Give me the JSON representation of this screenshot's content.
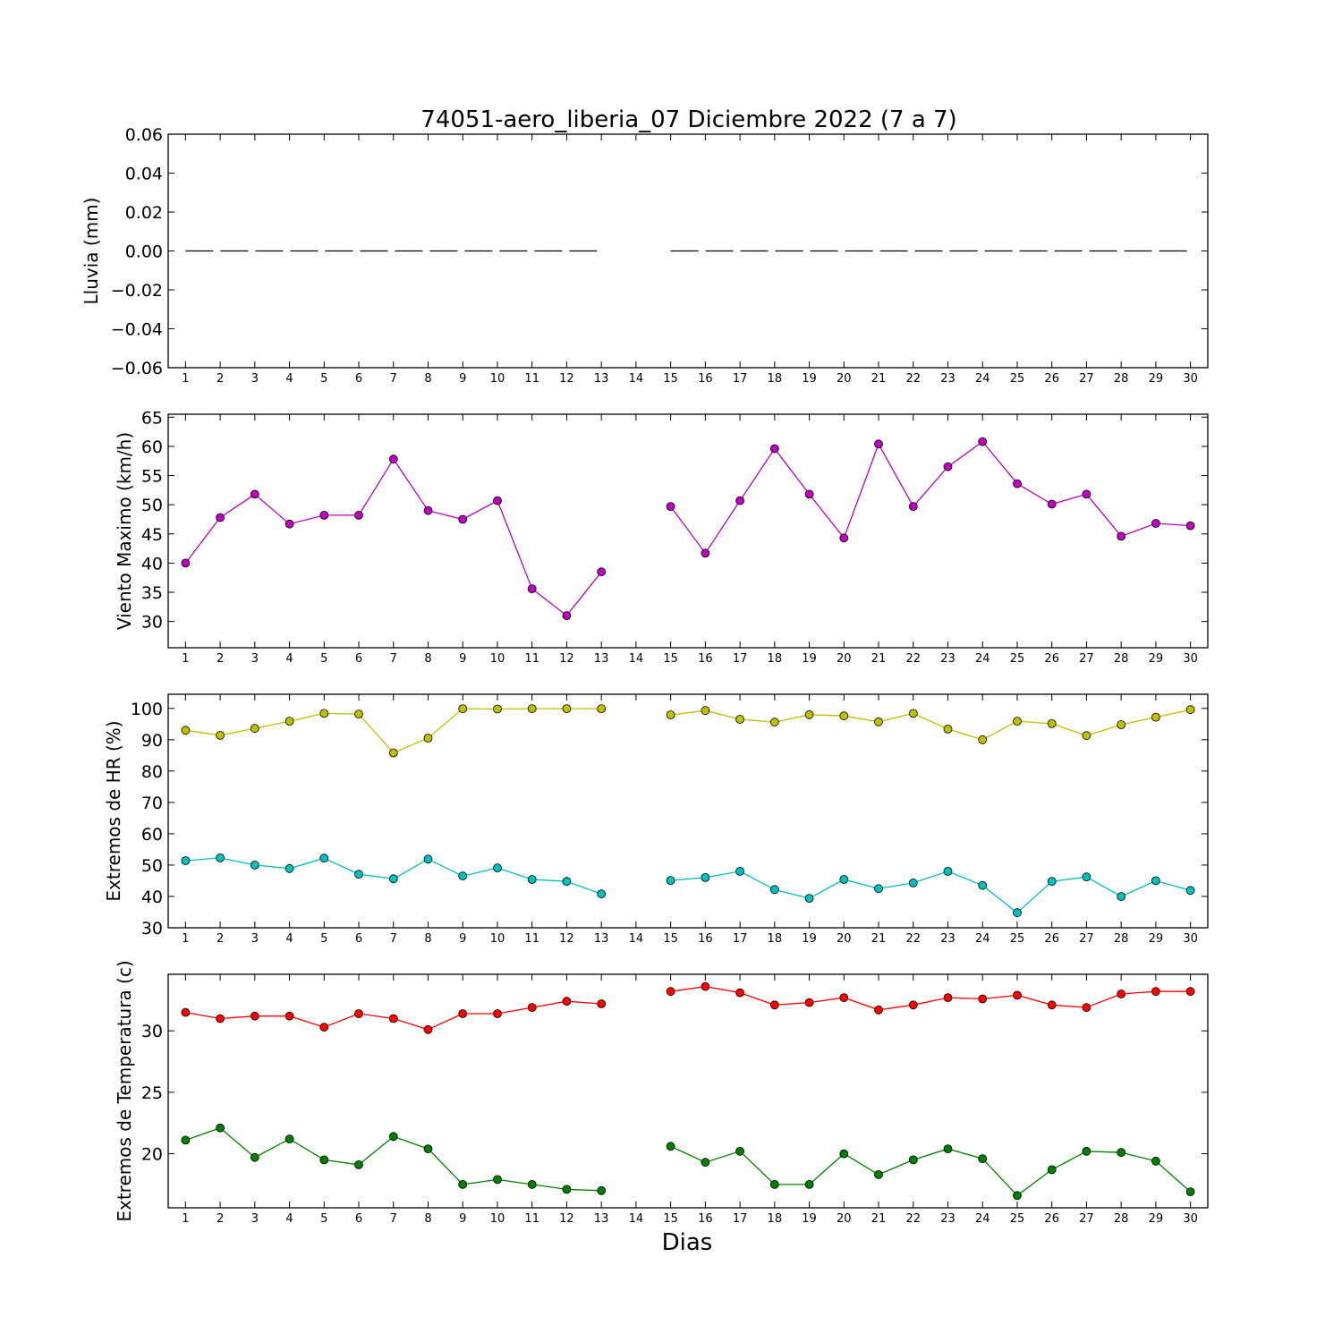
{
  "figure": {
    "title": "74051-aero_liberia_07 Diciembre 2022  (7 a 7)",
    "xlabel": "Dias"
  },
  "chart_data": [
    {
      "type": "line",
      "ylabel": "Lluvia (mm)",
      "x": [
        1,
        2,
        3,
        4,
        5,
        6,
        7,
        8,
        9,
        10,
        11,
        12,
        13,
        14,
        15,
        16,
        17,
        18,
        19,
        20,
        21,
        22,
        23,
        24,
        25,
        26,
        27,
        28,
        29,
        30
      ],
      "xlim": [
        0.5,
        30.5
      ],
      "ylim": [
        -0.06,
        0.06
      ],
      "yticks": [
        -0.06,
        -0.04,
        -0.02,
        0.0,
        0.02,
        0.04,
        0.06
      ],
      "yticklabels": [
        "−0.06",
        "−0.04",
        "−0.02",
        "0.00",
        "0.02",
        "0.04",
        "0.06"
      ],
      "series": [
        {
          "color": "#000000",
          "style": "dashed",
          "marker": "none",
          "values": [
            0,
            0,
            0,
            0,
            0,
            0,
            0,
            0,
            0,
            0,
            0,
            0,
            0,
            null,
            0,
            0,
            0,
            0,
            0,
            0,
            0,
            0,
            0,
            0,
            0,
            0,
            0,
            0,
            0,
            0
          ]
        }
      ]
    },
    {
      "type": "line",
      "ylabel": "Viento Maximo (km/h)",
      "x": [
        1,
        2,
        3,
        4,
        5,
        6,
        7,
        8,
        9,
        10,
        11,
        12,
        13,
        14,
        15,
        16,
        17,
        18,
        19,
        20,
        21,
        22,
        23,
        24,
        25,
        26,
        27,
        28,
        29,
        30
      ],
      "xlim": [
        0.5,
        30.5
      ],
      "ylim": [
        25.5,
        65.5
      ],
      "yticks": [
        30,
        35,
        40,
        45,
        50,
        55,
        60,
        65
      ],
      "yticklabels": [
        "30",
        "35",
        "40",
        "45",
        "50",
        "55",
        "60",
        "65"
      ],
      "series": [
        {
          "color": "#bf00bf",
          "style": "solid",
          "marker": "circle",
          "values": [
            40.0,
            47.8,
            51.8,
            46.7,
            48.2,
            48.2,
            57.8,
            49.0,
            47.5,
            50.7,
            35.6,
            31.0,
            38.5,
            null,
            49.7,
            41.7,
            50.7,
            59.6,
            51.8,
            44.3,
            60.4,
            49.7,
            56.5,
            60.8,
            53.6,
            50.1,
            51.8,
            44.6,
            46.8,
            46.4
          ]
        }
      ]
    },
    {
      "type": "line",
      "ylabel": "Extremos de HR (%)",
      "x": [
        1,
        2,
        3,
        4,
        5,
        6,
        7,
        8,
        9,
        10,
        11,
        12,
        13,
        14,
        15,
        16,
        17,
        18,
        19,
        20,
        21,
        22,
        23,
        24,
        25,
        26,
        27,
        28,
        29,
        30
      ],
      "xlim": [
        0.5,
        30.5
      ],
      "ylim": [
        30,
        104.5
      ],
      "yticks": [
        30,
        40,
        50,
        60,
        70,
        80,
        90,
        100
      ],
      "yticklabels": [
        "30",
        "40",
        "50",
        "60",
        "70",
        "80",
        "90",
        "100"
      ],
      "series": [
        {
          "color": "#bfbf00",
          "style": "solid",
          "marker": "circle",
          "values": [
            93.0,
            91.4,
            93.6,
            95.9,
            98.4,
            98.2,
            85.8,
            90.5,
            99.9,
            99.8,
            99.9,
            99.9,
            99.9,
            null,
            97.9,
            99.3,
            96.5,
            95.6,
            98.0,
            97.6,
            95.7,
            98.4,
            93.4,
            90.0,
            95.9,
            95.1,
            91.3,
            94.8,
            97.2,
            99.6
          ]
        },
        {
          "color": "#00bfbf",
          "style": "solid",
          "marker": "circle",
          "values": [
            51.4,
            52.3,
            50.0,
            48.9,
            52.2,
            47.1,
            45.6,
            51.9,
            46.5,
            49.1,
            45.4,
            44.8,
            40.8,
            null,
            45.1,
            46.0,
            48.0,
            42.2,
            39.4,
            45.4,
            42.5,
            44.3,
            48.0,
            43.5,
            34.8,
            44.8,
            46.2,
            40.0,
            45.0,
            41.9
          ]
        }
      ]
    },
    {
      "type": "line",
      "ylabel": "Extremos de Temperatura (c)",
      "x": [
        1,
        2,
        3,
        4,
        5,
        6,
        7,
        8,
        9,
        10,
        11,
        12,
        13,
        14,
        15,
        16,
        17,
        18,
        19,
        20,
        21,
        22,
        23,
        24,
        25,
        26,
        27,
        28,
        29,
        30
      ],
      "xlim": [
        0.5,
        30.5
      ],
      "ylim": [
        15.6,
        34.6
      ],
      "yticks": [
        20,
        25,
        30
      ],
      "yticklabels": [
        "20",
        "25",
        "30"
      ],
      "series": [
        {
          "color": "#ff0000",
          "style": "solid",
          "marker": "circle",
          "values": [
            31.5,
            31.0,
            31.2,
            31.2,
            30.3,
            31.4,
            31.0,
            30.1,
            31.4,
            31.4,
            31.9,
            32.4,
            32.2,
            null,
            33.2,
            33.6,
            33.1,
            32.1,
            32.3,
            32.7,
            31.7,
            32.1,
            32.7,
            32.6,
            32.9,
            32.1,
            31.9,
            33.0,
            33.2,
            33.2
          ]
        },
        {
          "color": "#007f00",
          "style": "solid",
          "marker": "circle",
          "values": [
            21.1,
            22.1,
            19.7,
            21.2,
            19.5,
            19.1,
            21.4,
            20.4,
            17.5,
            17.9,
            17.5,
            17.1,
            17.0,
            null,
            20.6,
            19.3,
            20.2,
            17.5,
            17.5,
            20.0,
            18.3,
            19.5,
            20.4,
            19.6,
            16.6,
            18.7,
            20.2,
            20.1,
            19.4,
            16.9
          ]
        }
      ]
    }
  ]
}
